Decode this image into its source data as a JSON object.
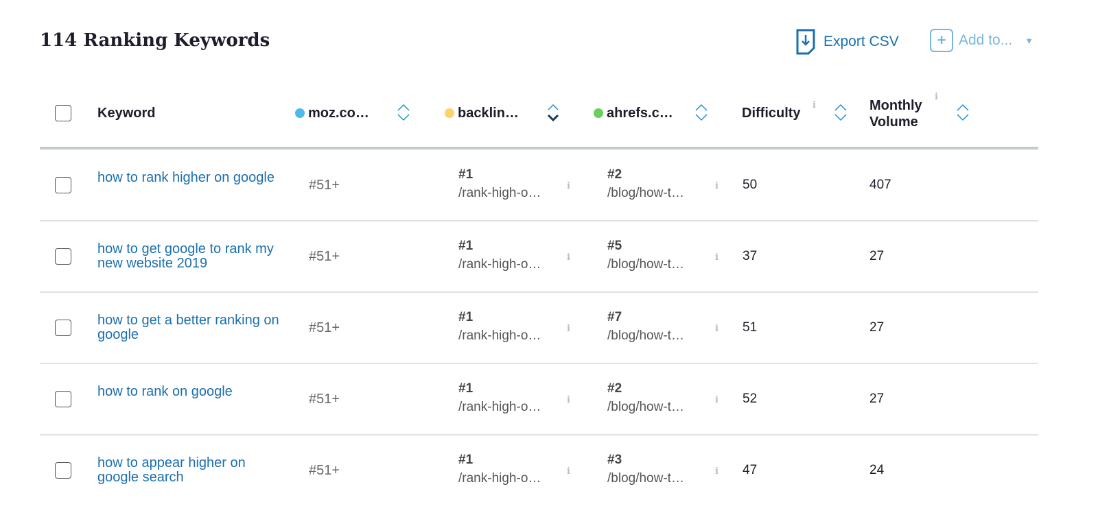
{
  "title": "114 Ranking Keywords",
  "toolbar": {
    "export_label": "Export CSV",
    "add_label": "Add to..."
  },
  "columns": {
    "keyword": "Keyword",
    "moz": "moz.co…",
    "backlinko": "backlin…",
    "ahrefs": "ahrefs.c…",
    "difficulty": "Difficulty",
    "volume_1": "Monthly",
    "volume_2": "Volume"
  },
  "colors": {
    "moz": "#4bbbea",
    "backlinko": "#fcd26a",
    "ahrefs": "#66d05a",
    "link": "#1a6fae"
  },
  "sorted_column": "backlinko",
  "rows": [
    {
      "keyword": "how to rank higher on google",
      "moz": "#51+",
      "b_rank": "#1",
      "b_url": "/rank-high-o…",
      "a_rank": "#2",
      "a_url": "/blog/how-t…",
      "difficulty": "50",
      "volume": "407"
    },
    {
      "keyword": "how to get google to rank my new website 2019",
      "moz": "#51+",
      "b_rank": "#1",
      "b_url": "/rank-high-o…",
      "a_rank": "#5",
      "a_url": "/blog/how-t…",
      "difficulty": "37",
      "volume": "27"
    },
    {
      "keyword": "how to get a better ranking on google",
      "moz": "#51+",
      "b_rank": "#1",
      "b_url": "/rank-high-o…",
      "a_rank": "#7",
      "a_url": "/blog/how-t…",
      "difficulty": "51",
      "volume": "27"
    },
    {
      "keyword": "how to rank on google",
      "moz": "#51+",
      "b_rank": "#1",
      "b_url": "/rank-high-o…",
      "a_rank": "#2",
      "a_url": "/blog/how-t…",
      "difficulty": "52",
      "volume": "27"
    },
    {
      "keyword": "how to appear higher on google search",
      "moz": "#51+",
      "b_rank": "#1",
      "b_url": "/rank-high-o…",
      "a_rank": "#3",
      "a_url": "/blog/how-t…",
      "difficulty": "47",
      "volume": "24"
    }
  ]
}
